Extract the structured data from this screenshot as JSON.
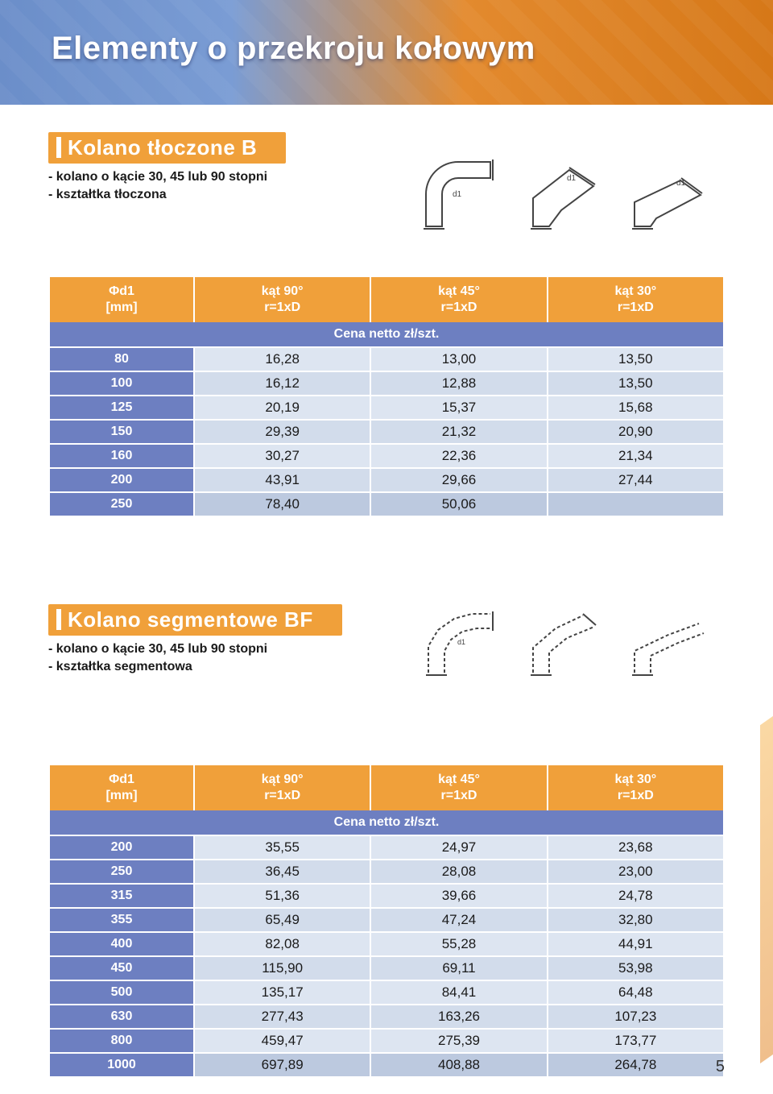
{
  "page": {
    "title": "Elementy o przekroju kołowym",
    "number": "5"
  },
  "accent_color": "#f0a03a",
  "header_left_color": "#6d7fc1",
  "row_bg_color": "#dbe3ef",
  "section1": {
    "title": "Kolano tłoczone B",
    "desc_line1": "- kolano o kącie 30, 45 lub 90 stopni",
    "desc_line2": "- kształtka tłoczona",
    "headers": {
      "c0a": "Φd1",
      "c0b": "[mm]",
      "c1a": "kąt 90°",
      "c1b": "r=1xD",
      "c2a": "kąt 45°",
      "c2b": "r=1xD",
      "c3a": "kąt 30°",
      "c3b": "r=1xD",
      "price_label": "Cena netto zł/szt."
    },
    "rows": [
      {
        "d": "80",
        "v": [
          "16,28",
          "13,00",
          "13,50"
        ]
      },
      {
        "d": "100",
        "v": [
          "16,12",
          "12,88",
          "13,50"
        ]
      },
      {
        "d": "125",
        "v": [
          "20,19",
          "15,37",
          "15,68"
        ]
      },
      {
        "d": "150",
        "v": [
          "29,39",
          "21,32",
          "20,90"
        ]
      },
      {
        "d": "160",
        "v": [
          "30,27",
          "22,36",
          "21,34"
        ]
      },
      {
        "d": "200",
        "v": [
          "43,91",
          "29,66",
          "27,44"
        ]
      },
      {
        "d": "250",
        "v": [
          "78,40",
          "50,06",
          ""
        ]
      }
    ]
  },
  "section2": {
    "title": "Kolano segmentowe BF",
    "desc_line1": "- kolano o kącie 30, 45 lub 90 stopni",
    "desc_line2": "- kształtka segmentowa",
    "headers": {
      "c0a": "Φd1",
      "c0b": "[mm]",
      "c1a": "kąt 90°",
      "c1b": "r=1xD",
      "c2a": "kąt 45°",
      "c2b": "r=1xD",
      "c3a": "kąt 30°",
      "c3b": "r=1xD",
      "price_label": "Cena netto zł/szt."
    },
    "rows": [
      {
        "d": "200",
        "v": [
          "35,55",
          "24,97",
          "23,68"
        ]
      },
      {
        "d": "250",
        "v": [
          "36,45",
          "28,08",
          "23,00"
        ]
      },
      {
        "d": "315",
        "v": [
          "51,36",
          "39,66",
          "24,78"
        ]
      },
      {
        "d": "355",
        "v": [
          "65,49",
          "47,24",
          "32,80"
        ]
      },
      {
        "d": "400",
        "v": [
          "82,08",
          "55,28",
          "44,91"
        ]
      },
      {
        "d": "450",
        "v": [
          "115,90",
          "69,11",
          "53,98"
        ]
      },
      {
        "d": "500",
        "v": [
          "135,17",
          "84,41",
          "64,48"
        ]
      },
      {
        "d": "630",
        "v": [
          "277,43",
          "163,26",
          "107,23"
        ]
      },
      {
        "d": "800",
        "v": [
          "459,47",
          "275,39",
          "173,77"
        ]
      },
      {
        "d": "1000",
        "v": [
          "697,89",
          "408,88",
          "264,78"
        ]
      }
    ]
  }
}
